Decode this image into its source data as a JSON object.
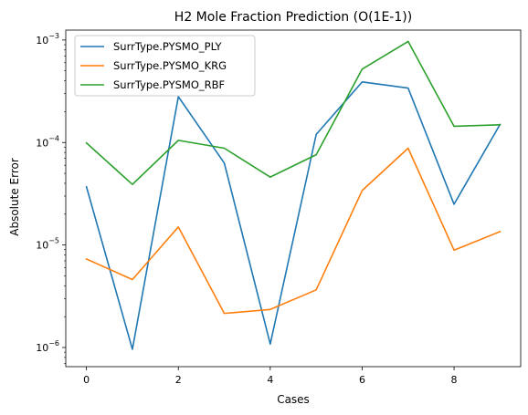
{
  "chart_data": {
    "type": "line",
    "title": "H2 Mole Fraction Prediction (O(1E-1))",
    "xlabel": "Cases",
    "ylabel": "Absolute Error",
    "yscale": "log",
    "xlim": [
      -0.45,
      9.45
    ],
    "ylim": [
      6.5e-07,
      0.00125
    ],
    "x": [
      0,
      1,
      2,
      3,
      4,
      5,
      6,
      7,
      8,
      9
    ],
    "x_ticks": [
      0,
      2,
      4,
      6,
      8
    ],
    "y_ticks": [
      {
        "value": 1e-06,
        "base": "10",
        "exp": "−6"
      },
      {
        "value": 1e-05,
        "base": "10",
        "exp": "−5"
      },
      {
        "value": 0.0001,
        "base": "10",
        "exp": "−4"
      },
      {
        "value": 0.001,
        "base": "10",
        "exp": "−3"
      }
    ],
    "legend_position": "top-left",
    "series": [
      {
        "name": "SurrType.PYSMO_PLY",
        "color": "#1f77b4",
        "values": [
          3.7e-05,
          9.6e-07,
          0.00028,
          6.3e-05,
          1.08e-06,
          0.00012,
          0.00039,
          0.00034,
          2.5e-05,
          0.00015
        ]
      },
      {
        "name": "SurrType.PYSMO_KRG",
        "color": "#ff7f0e",
        "values": [
          7.3e-06,
          4.6e-06,
          1.5e-05,
          2.15e-06,
          2.35e-06,
          3.65e-06,
          3.4e-05,
          8.8e-05,
          8.9e-06,
          1.35e-05
        ]
      },
      {
        "name": "SurrType.PYSMO_RBF",
        "color": "#2ca02c",
        "values": [
          9.9e-05,
          3.9e-05,
          0.000105,
          8.8e-05,
          4.6e-05,
          7.6e-05,
          0.00052,
          0.00097,
          0.000144,
          0.000149
        ]
      }
    ]
  }
}
